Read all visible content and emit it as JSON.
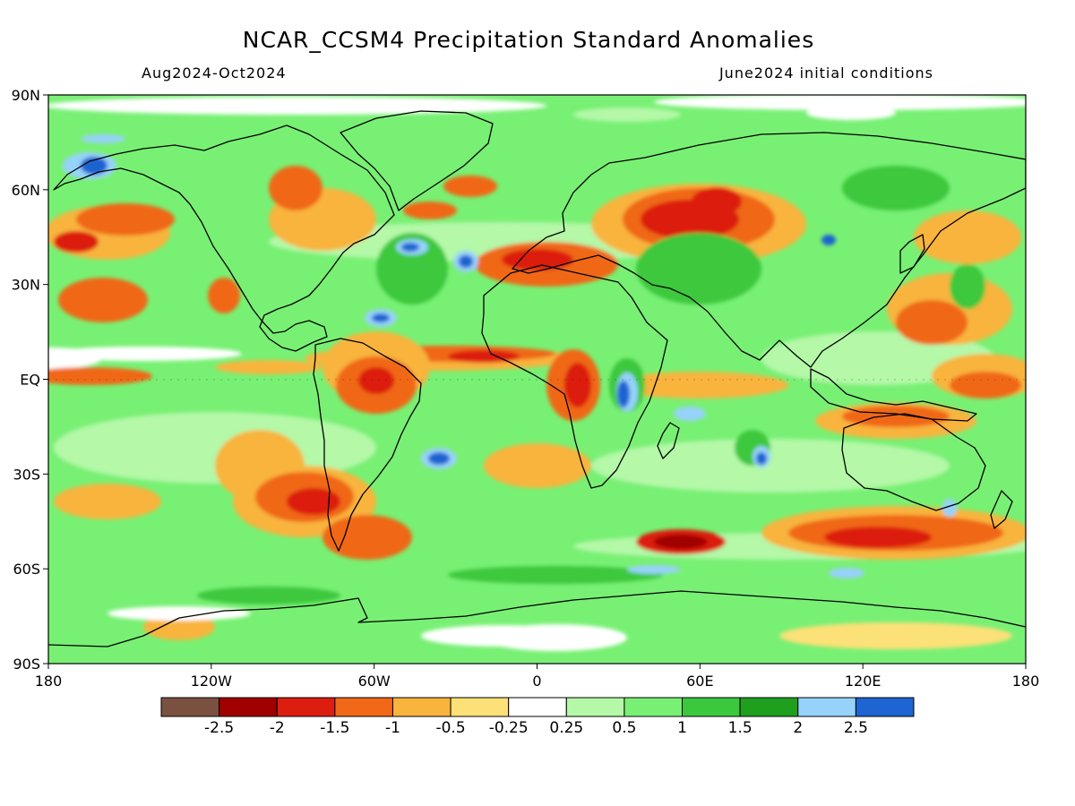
{
  "title": "NCAR_CCSM4 Precipitation Standard Anomalies",
  "subtitle_left": "Aug2024-Oct2024",
  "subtitle_right": "June2024 initial conditions",
  "lat_ticks": [
    "90N",
    "60N",
    "30N",
    "EQ",
    "30S",
    "60S",
    "90S"
  ],
  "lon_ticks": [
    "180",
    "120W",
    "60W",
    "0",
    "60E",
    "120E",
    "180"
  ],
  "colorbar": {
    "colors": [
      "#7a5040",
      "#a00000",
      "#dc1e10",
      "#f06818",
      "#f8b43c",
      "#fce178",
      "#ffffff",
      "#b4f8a8",
      "#78f074",
      "#3cc83c",
      "#1ea01e",
      "#96d2fa",
      "#1e64d2"
    ],
    "labels": [
      "-2.5",
      "-2",
      "-1.5",
      "-1",
      "-0.5",
      "-0.25",
      "0.25",
      "0.5",
      "1",
      "1.5",
      "2",
      "2.5"
    ]
  },
  "field_colors": {
    "background": "#78f074",
    "white": "#ffffff",
    "light_green": "#b4f8a8",
    "green": "#3cc83c",
    "dark_green": "#1ea01e",
    "yellow": "#fce178",
    "light_orange": "#f8b43c",
    "orange": "#f06818",
    "red": "#dc1e10",
    "dark_red": "#a00000",
    "light_blue": "#96d2fa",
    "blue": "#1e64d2"
  }
}
